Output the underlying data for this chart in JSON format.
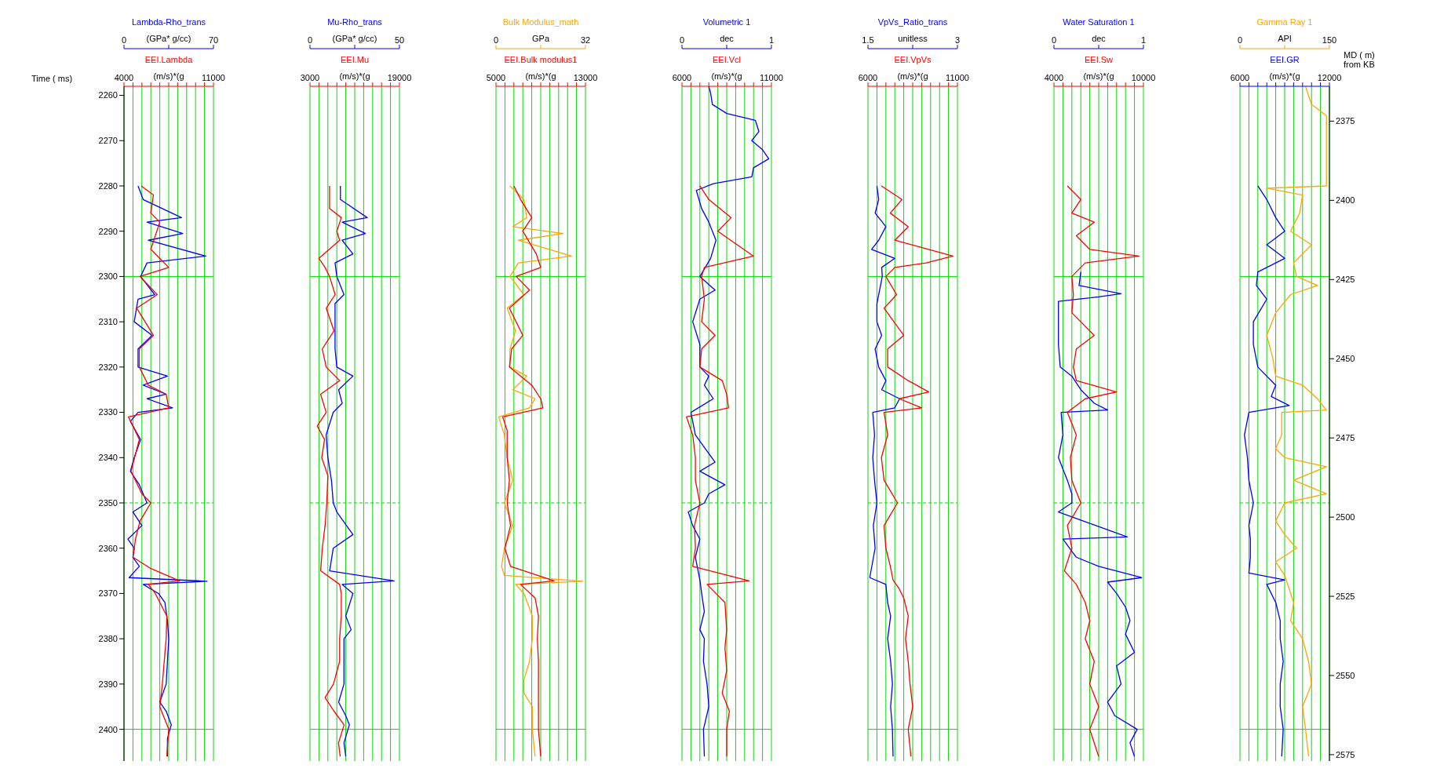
{
  "chart_data": [
    {
      "type": "line",
      "ylabel": "Time ( ms)",
      "xlabel": "(m/s)*(g",
      "x2label": "(GPa* g/cc)",
      "xlim": [
        4000,
        11000
      ],
      "xticks": [
        4000,
        {
          "value": 4700,
          "label": null
        },
        {
          "value": 5400,
          "label": null
        },
        {
          "value": 6100,
          "label": null
        },
        {
          "value": 6800,
          "label": null
        },
        {
          "value": 7500,
          "label": null
        },
        {
          "value": 8200,
          "label": null
        },
        {
          "value": 8900,
          "label": null
        },
        {
          "value": 9600,
          "label": null
        },
        {
          "value": 10300,
          "label": null
        },
        11000
      ],
      "x2lim": [
        0,
        70
      ],
      "x2ticks": [
        0,
        {
          "value": 35,
          "label": null
        },
        70
      ],
      "ylim": [
        2407,
        2258
      ],
      "yticks": [
        2260,
        2270,
        2280,
        2290,
        2300,
        2310,
        2320,
        2330,
        2340,
        2350,
        2360,
        2370,
        2380,
        2390,
        2400
      ],
      "grid": "x",
      "ref_lines": [
        {
          "axis": "y",
          "value": 2300,
          "color": "#00dd00"
        },
        {
          "axis": "y",
          "value": 2350,
          "color": "#00dd00",
          "line_style": "dashed"
        },
        {
          "axis": "y",
          "value": 2400,
          "color": "#00dd00"
        }
      ],
      "series": [
        {
          "name": "Lambda-Rho_trans",
          "color": "#0000ff",
          "axis": "x2",
          "x": [
            11,
            15,
            45,
            18,
            46,
            19,
            64,
            18,
            13,
            24,
            11,
            8,
            22,
            11,
            11,
            34,
            15,
            33,
            18,
            38,
            11,
            5,
            13,
            8,
            5,
            12,
            18,
            7,
            14,
            3,
            8,
            7,
            12,
            4,
            65,
            15,
            27,
            32,
            34,
            35,
            34,
            33,
            28,
            33,
            37,
            34,
            34
          ],
          "values": [
            2280,
            2283,
            2287,
            2288,
            2290.5,
            2292,
            2295.5,
            2297,
            2300,
            2304,
            2305,
            2310,
            2313,
            2316,
            2320,
            2322,
            2324,
            2326,
            2327,
            2329,
            2330,
            2332,
            2336,
            2340,
            2343,
            2346,
            2350,
            2352,
            2355,
            2358,
            2360,
            2362,
            2364,
            2366.5,
            2367.3,
            2368,
            2370,
            2372,
            2376,
            2380,
            2385,
            2390,
            2394,
            2396,
            2399,
            2402,
            2406
          ]
        },
        {
          "name": "EEI.Lambda",
          "color": "#ff0000",
          "x": [
            5350,
            6300,
            6100,
            6800,
            6450,
            6100,
            7500,
            5250,
            6600,
            5000,
            6300,
            5200,
            5200,
            5900,
            7300,
            7500,
            4350,
            4700,
            5200,
            4550,
            5400,
            6100,
            5250,
            4900,
            4700,
            6100,
            8350,
            5900,
            6450,
            7350,
            7300,
            7150,
            7000,
            6800,
            7500,
            7350
          ],
          "values": [
            2280,
            2282,
            2286,
            2288,
            2291,
            2294,
            2298,
            2300,
            2304,
            2307,
            2313,
            2316,
            2320,
            2324,
            2326,
            2329,
            2331,
            2333,
            2336,
            2343,
            2348,
            2350,
            2354,
            2358,
            2362,
            2364.5,
            2367.2,
            2368,
            2370,
            2375,
            2380,
            2385,
            2390,
            2395,
            2400,
            2406
          ]
        }
      ]
    },
    {
      "type": "line",
      "tick_labels": "x",
      "xlabel": "(m/s)*(g",
      "x2label": "(GPa* g/cc)",
      "xlim": [
        3000,
        19000
      ],
      "xticks": [
        3000,
        {
          "value": 4600,
          "label": null
        },
        {
          "value": 6200,
          "label": null
        },
        {
          "value": 7800,
          "label": null
        },
        {
          "value": 9400,
          "label": null
        },
        {
          "value": 11000,
          "label": null
        },
        {
          "value": 12600,
          "label": null
        },
        {
          "value": 14200,
          "label": null
        },
        {
          "value": 15800,
          "label": null
        },
        {
          "value": 17400,
          "label": null
        },
        19000
      ],
      "x2lim": [
        0,
        50
      ],
      "x2ticks": [
        0,
        {
          "value": 25,
          "label": null
        },
        50
      ],
      "ylim": [
        2407,
        2258
      ],
      "yticks": [
        2260,
        2270,
        2280,
        2290,
        2300,
        2310,
        2320,
        2330,
        2340,
        2350,
        2360,
        2370,
        2380,
        2390,
        2400
      ],
      "grid": "x",
      "ref_lines": [
        {
          "axis": "y",
          "value": 2300,
          "color": "#00dd00"
        },
        {
          "axis": "y",
          "value": 2350,
          "color": "#00dd00",
          "line_style": "dashed"
        },
        {
          "axis": "y",
          "value": 2400,
          "color": "#00dd00"
        }
      ],
      "series": [
        {
          "name": "Mu-Rho_trans",
          "color": "#0000ff",
          "axis": "x2",
          "x": [
            17,
            17,
            32,
            18,
            31,
            18,
            24,
            14,
            15,
            19,
            14,
            14,
            14,
            15,
            24,
            16,
            18,
            13,
            9,
            10,
            12,
            13,
            15,
            24,
            13,
            11,
            47,
            18,
            24,
            20,
            23,
            19,
            19,
            19,
            16,
            20,
            22,
            19,
            20
          ],
          "values": [
            2280,
            2283,
            2287,
            2288,
            2290.5,
            2292,
            2295,
            2297,
            2300,
            2304,
            2306,
            2310,
            2316,
            2320,
            2322,
            2325,
            2328,
            2330,
            2335,
            2340,
            2345,
            2350,
            2352,
            2357,
            2360,
            2365,
            2367.2,
            2368,
            2370,
            2375,
            2378,
            2380,
            2385,
            2390,
            2394,
            2397,
            2399,
            2403,
            2406
          ]
        },
        {
          "name": "EEI.Mu",
          "color": "#ff0000",
          "x": [
            6500,
            6500,
            8600,
            7800,
            8300,
            4600,
            5700,
            6500,
            7500,
            5900,
            7300,
            5200,
            5900,
            8300,
            4900,
            5900,
            4300,
            5600,
            5100,
            6200,
            6000,
            5700,
            5200,
            4900,
            8300,
            8600,
            8600,
            8300,
            8300,
            7200,
            5700,
            7300,
            9100,
            8100,
            8400
          ],
          "values": [
            2280,
            2285,
            2287,
            2290,
            2292,
            2296,
            2298,
            2300,
            2304,
            2307,
            2312,
            2316,
            2320,
            2323,
            2326,
            2330,
            2333,
            2336,
            2340,
            2344,
            2350,
            2355,
            2360,
            2365,
            2368,
            2370,
            2375,
            2380,
            2385,
            2390,
            2393,
            2396,
            2399,
            2403,
            2406
          ]
        }
      ]
    },
    {
      "type": "line",
      "tick_labels": "x",
      "xlabel": "(m/s)*(g",
      "x2label": "GPa",
      "xlim": [
        5000,
        13000
      ],
      "xticks": [
        5000,
        {
          "value": 5800,
          "label": null
        },
        {
          "value": 6600,
          "label": null
        },
        {
          "value": 7400,
          "label": null
        },
        {
          "value": 8200,
          "label": null
        },
        {
          "value": 9000,
          "label": null
        },
        {
          "value": 9800,
          "label": null
        },
        {
          "value": 10600,
          "label": null
        },
        {
          "value": 11400,
          "label": null
        },
        {
          "value": 12200,
          "label": null
        },
        13000
      ],
      "x2lim": [
        0,
        32
      ],
      "x2ticks": [
        0,
        {
          "value": 16,
          "label": null
        },
        32
      ],
      "ylim": [
        2407,
        2258
      ],
      "yticks": [
        2260,
        2270,
        2280,
        2290,
        2300,
        2310,
        2320,
        2330,
        2340,
        2350,
        2360,
        2370,
        2380,
        2390,
        2400
      ],
      "grid": "x",
      "ref_lines": [
        {
          "axis": "y",
          "value": 2300,
          "color": "#00dd00"
        },
        {
          "axis": "y",
          "value": 2350,
          "color": "#00dd00",
          "line_style": "dashed"
        },
        {
          "axis": "y",
          "value": 2400,
          "color": "#00dd00"
        }
      ],
      "series": [
        {
          "name": "Bulk Modulus_math",
          "color": "#ffa500",
          "axis": "x2",
          "x": [
            5,
            10,
            11,
            6,
            24,
            8,
            27,
            8,
            5,
            10,
            4,
            7,
            5,
            5,
            11,
            6,
            14,
            12,
            1,
            3,
            4,
            6,
            3,
            6,
            3,
            2,
            3,
            31,
            7,
            10,
            13,
            13,
            12,
            10,
            10,
            13,
            13,
            14
          ],
          "values": [
            2280,
            2283,
            2287,
            2289,
            2290.5,
            2292,
            2295.5,
            2297,
            2300,
            2304,
            2307,
            2312,
            2316,
            2320,
            2322,
            2325,
            2327,
            2329,
            2331,
            2335,
            2340,
            2345,
            2350,
            2355,
            2360,
            2364,
            2366,
            2367.3,
            2368,
            2370,
            2375,
            2380,
            2385,
            2389,
            2392,
            2395,
            2400,
            2406
          ]
        },
        {
          "name": "EEI.Bulk modulus1",
          "color": "#ff0000",
          "x": [
            6600,
            7200,
            8200,
            7400,
            8600,
            9000,
            6800,
            8000,
            6200,
            7400,
            6400,
            6200,
            8200,
            9000,
            9200,
            5600,
            6000,
            6000,
            6200,
            6000,
            6300,
            5800,
            6300,
            10200,
            7200,
            8500,
            8800,
            8700,
            8800,
            8800,
            8800,
            8800,
            9000
          ],
          "values": [
            2280,
            2283,
            2287,
            2290,
            2295,
            2298,
            2300,
            2303,
            2307,
            2313,
            2316,
            2320,
            2324,
            2327,
            2329,
            2331,
            2334,
            2340,
            2345,
            2350,
            2355,
            2360,
            2364,
            2367.2,
            2368,
            2371,
            2375,
            2380,
            2385,
            2390,
            2395,
            2400,
            2406
          ]
        }
      ]
    },
    {
      "type": "line",
      "tick_labels": "x",
      "xlabel": "(m/s)*(g",
      "x2label": "dec",
      "xlim": [
        6000,
        11000
      ],
      "xticks": [
        6000,
        {
          "value": 6500,
          "label": null
        },
        {
          "value": 7000,
          "label": null
        },
        {
          "value": 7500,
          "label": null
        },
        {
          "value": 8000,
          "label": null
        },
        {
          "value": 8500,
          "label": null
        },
        {
          "value": 9000,
          "label": null
        },
        {
          "value": 9500,
          "label": null
        },
        {
          "value": 10000,
          "label": null
        },
        {
          "value": 10500,
          "label": null
        },
        11000
      ],
      "x2lim": [
        0,
        1
      ],
      "x2ticks": [
        0,
        {
          "value": 0.5,
          "label": null
        },
        1
      ],
      "ylim": [
        2407,
        2258
      ],
      "yticks": [
        2260,
        2270,
        2280,
        2290,
        2300,
        2310,
        2320,
        2330,
        2340,
        2350,
        2360,
        2370,
        2380,
        2390,
        2400
      ],
      "grid": "x",
      "ref_lines": [
        {
          "axis": "y",
          "value": 2300,
          "color": "#00dd00"
        },
        {
          "axis": "y",
          "value": 2350,
          "color": "#00dd00",
          "line_style": "dashed"
        },
        {
          "axis": "y",
          "value": 2400,
          "color": "#00dd00"
        }
      ],
      "series": [
        {
          "name": "Volumetric 1",
          "color": "#0000ff",
          "axis": "x2",
          "x": [
            0.3,
            0.32,
            0.34,
            0.5,
            0.82,
            0.86,
            0.78,
            0.9,
            0.97,
            0.8,
            0.78,
            0.35,
            0.16,
            0.22,
            0.3,
            0.38,
            0.32,
            0.2,
            0.37,
            0.2,
            0.12,
            0.2,
            0.2,
            0.3,
            0.25,
            0.35,
            0.1,
            0.15,
            0.37,
            0.2,
            0.48,
            0.3,
            0.25,
            0.07,
            0.12,
            0.2,
            0.15,
            0.2,
            0.22,
            0.25,
            0.2,
            0.25,
            0.24,
            0.28,
            0.3,
            0.24,
            0.25
          ],
          "values": [
            2258,
            2259.5,
            2262,
            2264,
            2265.5,
            2268,
            2270,
            2272,
            2274,
            2276,
            2278,
            2279.5,
            2281,
            2285,
            2288,
            2292,
            2296,
            2300,
            2303,
            2305,
            2310,
            2315,
            2320,
            2322,
            2324,
            2327,
            2330,
            2335,
            2341,
            2343,
            2346,
            2348,
            2350,
            2352,
            2355,
            2358,
            2362,
            2367,
            2370,
            2374,
            2378,
            2380,
            2385,
            2390,
            2395,
            2400,
            2406
          ]
        },
        {
          "name": "EEI.Vcl",
          "color": "#ff0000",
          "x": [
            7000,
            7500,
            8750,
            8000,
            10000,
            7250,
            7100,
            7250,
            7100,
            7850,
            7100,
            7000,
            8250,
            8500,
            8600,
            6250,
            6600,
            6750,
            6750,
            7000,
            6700,
            6750,
            6600,
            9750,
            7400,
            8400,
            8500,
            8400,
            8500,
            8250,
            8650,
            8500,
            8500
          ],
          "values": [
            2280,
            2283,
            2287,
            2290,
            2295.5,
            2298,
            2300,
            2305,
            2310,
            2313,
            2316,
            2320,
            2323,
            2326,
            2329,
            2331,
            2335,
            2340,
            2345,
            2350,
            2355,
            2360,
            2364,
            2367.2,
            2368,
            2372,
            2378,
            2382,
            2387,
            2392,
            2396,
            2400,
            2406
          ]
        }
      ]
    },
    {
      "type": "line",
      "tick_labels": "x",
      "xlabel": "(m/s)*(g",
      "x2label": "unitless",
      "xlim": [
        6000,
        11000
      ],
      "xticks": [
        6000,
        {
          "value": 6500,
          "label": null
        },
        {
          "value": 7000,
          "label": null
        },
        {
          "value": 7500,
          "label": null
        },
        {
          "value": 8000,
          "label": null
        },
        {
          "value": 8500,
          "label": null
        },
        {
          "value": 9000,
          "label": null
        },
        {
          "value": 9500,
          "label": null
        },
        {
          "value": 10000,
          "label": null
        },
        {
          "value": 10500,
          "label": null
        },
        11000
      ],
      "x2lim": [
        1.5,
        3
      ],
      "x2ticks": [
        1.5,
        {
          "value": 2.25,
          "label": null
        },
        3
      ],
      "ylim": [
        2407,
        2258
      ],
      "yticks": [
        2260,
        2270,
        2280,
        2290,
        2300,
        2310,
        2320,
        2330,
        2340,
        2350,
        2360,
        2370,
        2380,
        2390,
        2400
      ],
      "grid": "x",
      "ref_lines": [
        {
          "axis": "y",
          "value": 2300,
          "color": "#00dd00"
        },
        {
          "axis": "y",
          "value": 2350,
          "color": "#00dd00",
          "line_style": "dashed"
        },
        {
          "axis": "y",
          "value": 2400,
          "color": "#00dd00"
        }
      ],
      "series": [
        {
          "name": "VpVs_Ratio_trans",
          "color": "#0000ff",
          "axis": "x2",
          "x": [
            1.65,
            1.68,
            1.62,
            1.8,
            1.68,
            1.56,
            1.95,
            1.73,
            1.74,
            1.68,
            1.65,
            1.65,
            1.73,
            1.62,
            1.68,
            1.8,
            1.73,
            2.03,
            1.95,
            1.58,
            1.61,
            1.58,
            1.61,
            1.65,
            1.59,
            1.62,
            1.53,
            1.8,
            1.83,
            1.88,
            1.83,
            1.88,
            1.91,
            1.88,
            1.91,
            1.92
          ],
          "values": [
            2280,
            2283,
            2286,
            2289,
            2292,
            2294,
            2296,
            2298,
            2300,
            2304,
            2306,
            2310,
            2313,
            2316,
            2320,
            2323,
            2325,
            2327,
            2329,
            2330,
            2335,
            2340,
            2345,
            2350,
            2355,
            2360,
            2366.5,
            2368,
            2372,
            2375,
            2380,
            2385,
            2390,
            2395,
            2400,
            2406
          ]
        },
        {
          "name": "EEI.VpVs",
          "color": "#ff0000",
          "x": [
            6750,
            7900,
            7250,
            8250,
            7500,
            10750,
            9250,
            7500,
            7000,
            7600,
            6900,
            8000,
            7100,
            7100,
            8250,
            9400,
            7750,
            9000,
            6900,
            7100,
            6750,
            6900,
            7650,
            6900,
            7000,
            7250,
            7400,
            7750,
            8000,
            8250,
            8100,
            8250,
            8350,
            8500,
            8250,
            8400
          ],
          "values": [
            2280,
            2283,
            2286,
            2289,
            2292,
            2295.5,
            2297,
            2298,
            2300,
            2304,
            2307,
            2313,
            2316,
            2320,
            2323,
            2325.5,
            2327,
            2329,
            2330,
            2335,
            2340,
            2345,
            2350,
            2355,
            2360,
            2364,
            2367,
            2369,
            2371,
            2375,
            2380,
            2385,
            2390,
            2395,
            2400,
            2406
          ]
        }
      ]
    },
    {
      "type": "line",
      "tick_labels": "x",
      "xlabel": "(m/s)*(g",
      "x2label": "dec",
      "xlim": [
        4000,
        10000
      ],
      "xticks": [
        4000,
        {
          "value": 4600,
          "label": null
        },
        {
          "value": 5200,
          "label": null
        },
        {
          "value": 5800,
          "label": null
        },
        {
          "value": 6400,
          "label": null
        },
        {
          "value": 7000,
          "label": null
        },
        {
          "value": 7600,
          "label": null
        },
        {
          "value": 8200,
          "label": null
        },
        {
          "value": 8800,
          "label": null
        },
        {
          "value": 9400,
          "label": null
        },
        10000
      ],
      "x2lim": [
        0,
        1
      ],
      "x2ticks": [
        0,
        {
          "value": 0.5,
          "label": null
        },
        1
      ],
      "ylim": [
        2407,
        2258
      ],
      "yticks": [
        2260,
        2270,
        2280,
        2290,
        2300,
        2310,
        2320,
        2330,
        2340,
        2350,
        2360,
        2370,
        2380,
        2390,
        2400
      ],
      "grid": "x",
      "ref_lines": [
        {
          "axis": "y",
          "value": 2300,
          "color": "#00dd00"
        },
        {
          "axis": "y",
          "value": 2350,
          "color": "#00dd00",
          "line_style": "dashed"
        },
        {
          "axis": "y",
          "value": 2400,
          "color": "#00dd00"
        }
      ],
      "series": [
        {
          "name": "Water Saturation 1",
          "color": "#0000ff",
          "axis": "x2",
          "x": [
            0.3,
            0.28,
            0.75,
            0.5,
            0.05,
            0.05,
            0.07,
            0.2,
            0.3,
            0.45,
            0.6,
            0.08,
            0.1,
            0.05,
            0.15,
            0.2,
            0.2,
            0.05,
            0.82,
            0.1,
            0.25,
            0.5,
            0.98,
            0.6,
            0.7,
            0.8,
            0.85,
            0.8,
            0.9,
            0.7,
            0.75,
            0.6,
            0.68,
            0.93,
            0.85,
            0.9
          ],
          "values": [
            2299,
            2302,
            2303.8,
            2304.5,
            2305.5,
            2315,
            2320,
            2322,
            2325,
            2328,
            2329.5,
            2330,
            2335,
            2340,
            2345,
            2348,
            2350,
            2352,
            2357.5,
            2358,
            2362,
            2364,
            2366.5,
            2367.5,
            2370,
            2373,
            2376,
            2379,
            2383,
            2386,
            2390,
            2394,
            2397,
            2400,
            2403,
            2406
          ]
        },
        {
          "name": "EEI.Sw",
          "color": "#ff0000",
          "x": [
            4900,
            5800,
            5200,
            6700,
            5500,
            6400,
            9700,
            6100,
            5200,
            5300,
            5200,
            6700,
            5500,
            5300,
            5500,
            8200,
            6100,
            4900,
            5500,
            5100,
            5200,
            5800,
            4900,
            5200,
            4700,
            5500,
            6100,
            6400,
            6100,
            6700,
            6400,
            7000,
            6400,
            7000
          ],
          "values": [
            2280,
            2283,
            2286,
            2288,
            2291,
            2294,
            2295.5,
            2297,
            2300,
            2304,
            2308,
            2313,
            2316,
            2320,
            2323,
            2325.5,
            2327,
            2330,
            2335,
            2340,
            2345,
            2350,
            2355,
            2360,
            2365,
            2368,
            2372,
            2376,
            2380,
            2385,
            2390,
            2395,
            2400,
            2406
          ]
        }
      ]
    },
    {
      "type": "line",
      "xlabel": "(m/s)*(g",
      "x2label": "API",
      "xlim": [
        6000,
        12000
      ],
      "xticks": [
        6000,
        {
          "value": 6600,
          "label": null
        },
        {
          "value": 7200,
          "label": null
        },
        {
          "value": 7800,
          "label": null
        },
        {
          "value": 8400,
          "label": null
        },
        {
          "value": 9000,
          "label": null
        },
        {
          "value": 9600,
          "label": null
        },
        {
          "value": 10200,
          "label": null
        },
        {
          "value": 10800,
          "label": null
        },
        {
          "value": 11400,
          "label": null
        },
        12000
      ],
      "x2lim": [
        0,
        150
      ],
      "x2ticks": [
        0,
        {
          "value": 75,
          "label": null
        },
        150
      ],
      "ylim": [
        2407,
        2258
      ],
      "y2label": "MD ( m) from KB",
      "y2lim": [
        2577,
        2364
      ],
      "y2ticks": [
        2375,
        2400,
        2425,
        2450,
        2475,
        2500,
        2525,
        2550,
        2575
      ],
      "grid": "x",
      "ref_lines": [
        {
          "axis": "y",
          "value": 2300,
          "color": "#00dd00"
        },
        {
          "axis": "y",
          "value": 2350,
          "color": "#00dd00",
          "line_style": "dashed"
        },
        {
          "axis": "y",
          "value": 2400,
          "color": "#00dd00"
        }
      ],
      "series": [
        {
          "name": "Gamma Ray 1",
          "color": "#ffa500",
          "axis": "x2",
          "x": [
            110,
            120,
            145,
            145,
            45,
            105,
            100,
            85,
            120,
            90,
            95,
            130,
            85,
            60,
            45,
            55,
            60,
            105,
            130,
            145,
            70,
            70,
            60,
            75,
            145,
            90,
            145,
            75,
            60,
            75,
            95,
            60,
            75,
            80,
            90,
            85,
            105,
            115,
            120,
            105,
            110,
            115
          ],
          "values": [
            2258,
            2262,
            2264.5,
            2280,
            2280.5,
            2282,
            2286,
            2290,
            2293,
            2297,
            2300,
            2302,
            2304,
            2308,
            2313,
            2318,
            2322,
            2324,
            2327,
            2329.5,
            2330,
            2335,
            2338,
            2340,
            2342,
            2345,
            2348,
            2350,
            2354,
            2357,
            2360,
            2363,
            2366,
            2368,
            2372,
            2376,
            2380,
            2385,
            2390,
            2395,
            2400,
            2406
          ]
        },
        {
          "name": "EEI.GR",
          "color": "#0000ff",
          "x": [
            7200,
            7800,
            8400,
            9000,
            7800,
            9000,
            7200,
            7100,
            7800,
            6900,
            6900,
            7200,
            8400,
            8100,
            9300,
            6600,
            6300,
            6500,
            6600,
            6900,
            6600,
            6700,
            6700,
            6600,
            9000,
            7800,
            8400,
            8700,
            8700,
            8900,
            8700,
            8700,
            8900,
            8800
          ],
          "values": [
            2280,
            2283,
            2287,
            2290,
            2293,
            2296,
            2299,
            2302,
            2305,
            2310,
            2315,
            2320,
            2324,
            2326.5,
            2328.5,
            2330,
            2335,
            2340,
            2345,
            2350,
            2355,
            2358,
            2362,
            2365.5,
            2367,
            2368,
            2372,
            2376,
            2380,
            2385,
            2390,
            2395,
            2400,
            2406
          ]
        }
      ]
    }
  ]
}
